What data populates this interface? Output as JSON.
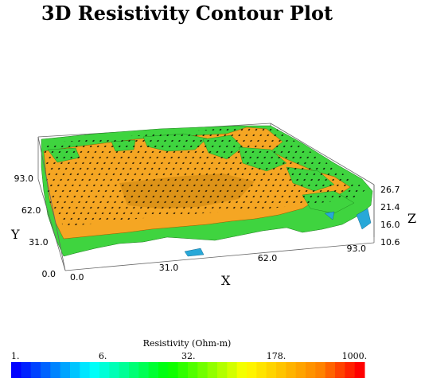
{
  "chart_data": {
    "type": "surface",
    "title": "3D Resistivity Contour Plot",
    "xlabel": "X",
    "ylabel": "Y",
    "zlabel": "Z",
    "x_ticks": [
      "0.0",
      "31.0",
      "62.0",
      "93.0"
    ],
    "y_ticks": [
      "0.0",
      "31.0",
      "62.0",
      "93.0"
    ],
    "z_ticks": [
      "10.6",
      "16.0",
      "21.4",
      "26.7"
    ],
    "xlim": [
      0,
      93
    ],
    "ylim": [
      0,
      93
    ],
    "zlim": [
      10.6,
      26.7
    ],
    "colorbar": {
      "title": "Resistivity (Ohm-m)",
      "scale": "log",
      "ticks": [
        "1.",
        "6.",
        "32.",
        "178.",
        "1000."
      ],
      "range": [
        1,
        1000
      ],
      "colors": [
        "#0000ff",
        "#0080ff",
        "#00ffff",
        "#00ff80",
        "#00ff00",
        "#80ff00",
        "#ffff00",
        "#ffc000",
        "#ff8000",
        "#ff0000"
      ]
    },
    "surface_colors": {
      "orange": "#f5a623",
      "green": "#3fd43f",
      "blue": "#28a8d8",
      "white": "#ffffff"
    }
  }
}
